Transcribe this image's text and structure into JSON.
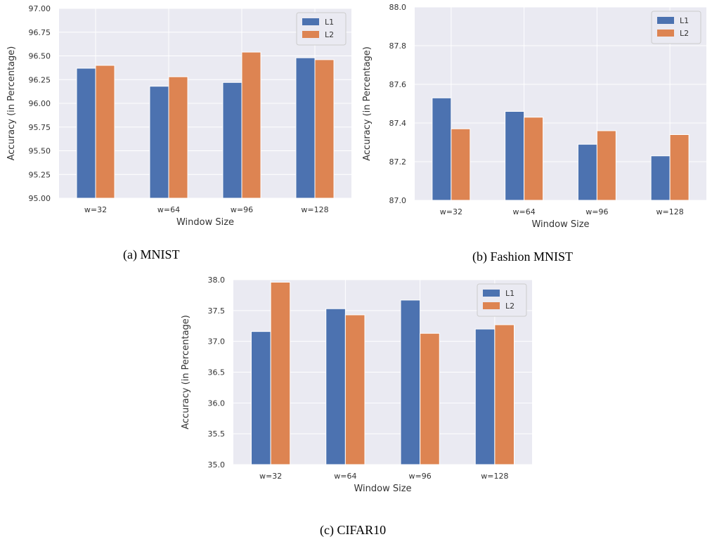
{
  "chart_data": [
    {
      "type": "bar",
      "caption": "(a) MNIST",
      "categories": [
        "w=32",
        "w=64",
        "w=96",
        "w=128"
      ],
      "series": [
        {
          "name": "L1",
          "values": [
            96.37,
            96.18,
            96.22,
            96.48
          ],
          "color": "#4c72b0"
        },
        {
          "name": "L2",
          "values": [
            96.4,
            96.28,
            96.54,
            96.46
          ],
          "color": "#dd8452"
        }
      ],
      "xlabel": "Window Size",
      "ylabel": "Accuracy (in Percentage)",
      "ylim": [
        95.0,
        97.0
      ],
      "yticks": [
        "95.00",
        "95.25",
        "95.50",
        "95.75",
        "96.00",
        "96.25",
        "96.50",
        "96.75",
        "97.00"
      ],
      "grid": true,
      "legend": "top-right"
    },
    {
      "type": "bar",
      "caption": "(b) Fashion MNIST",
      "categories": [
        "w=32",
        "w=64",
        "w=96",
        "w=128"
      ],
      "series": [
        {
          "name": "L1",
          "values": [
            87.53,
            87.46,
            87.29,
            87.23
          ],
          "color": "#4c72b0"
        },
        {
          "name": "L2",
          "values": [
            87.37,
            87.43,
            87.36,
            87.34
          ],
          "color": "#dd8452"
        }
      ],
      "xlabel": "Window Size",
      "ylabel": "Accuracy (in Percentage)",
      "ylim": [
        87.0,
        88.0
      ],
      "yticks": [
        "87.0",
        "87.2",
        "87.4",
        "87.6",
        "87.8",
        "88.0"
      ],
      "grid": true,
      "legend": "top-right"
    },
    {
      "type": "bar",
      "caption": "(c) CIFAR10",
      "categories": [
        "w=32",
        "w=64",
        "w=96",
        "w=128"
      ],
      "series": [
        {
          "name": "L1",
          "values": [
            37.16,
            37.53,
            37.67,
            37.2
          ],
          "color": "#4c72b0"
        },
        {
          "name": "L2",
          "values": [
            37.96,
            37.43,
            37.13,
            37.27
          ],
          "color": "#dd8452"
        }
      ],
      "xlabel": "Window Size",
      "ylabel": "Accuracy (in Percentage)",
      "ylim": [
        35.0,
        38.0
      ],
      "yticks": [
        "35.0",
        "35.5",
        "36.0",
        "36.5",
        "37.0",
        "37.5",
        "38.0"
      ],
      "grid": true,
      "legend": "top-right"
    }
  ]
}
